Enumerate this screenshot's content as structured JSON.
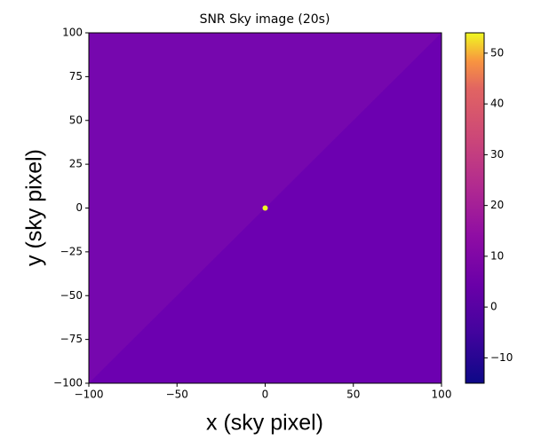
{
  "chart_data": {
    "type": "heatmap",
    "title": "SNR Sky image (20s)",
    "x_label": "x (sky pixel)",
    "y_label": "y (sky pixel)",
    "xlim": [
      -100,
      100
    ],
    "ylim": [
      -100,
      100
    ],
    "xticks": [
      {
        "value": -100,
        "label": "−100"
      },
      {
        "value": -50,
        "label": "−50"
      },
      0,
      50,
      100
    ],
    "yticks": [
      {
        "value": -100,
        "label": "−100"
      },
      {
        "value": -75,
        "label": "−75"
      },
      {
        "value": -50,
        "label": "−50"
      },
      {
        "value": -25,
        "label": "−25"
      },
      0,
      25,
      50,
      75,
      100
    ],
    "colormap": "plasma",
    "clim": [
      -15,
      54
    ],
    "cticks": [
      {
        "value": -10,
        "label": "−10"
      },
      0,
      10,
      20,
      30,
      40,
      50
    ],
    "points": [
      {
        "x": 0,
        "y": 0,
        "value": 54
      }
    ]
  }
}
